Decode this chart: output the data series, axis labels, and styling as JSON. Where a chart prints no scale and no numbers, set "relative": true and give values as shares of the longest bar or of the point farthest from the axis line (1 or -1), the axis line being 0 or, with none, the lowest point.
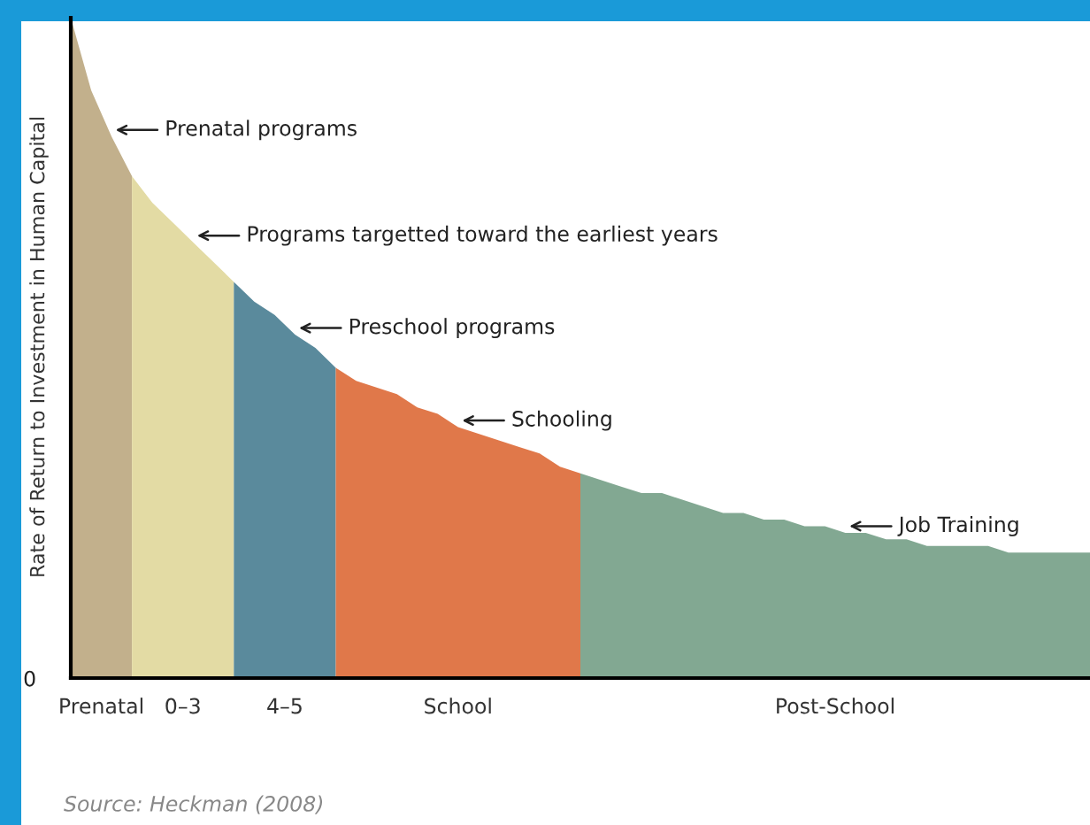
{
  "chart_data": {
    "type": "area",
    "relative": true,
    "ylabel": "Rate of Return to Investment in Human Capital",
    "legend": false,
    "categories": [
      null,
      null,
      null,
      null,
      null,
      null,
      null,
      null,
      null,
      null,
      null,
      null,
      null,
      null,
      null,
      null,
      null,
      null,
      null,
      null,
      null,
      null,
      null,
      null,
      null,
      null,
      null,
      null,
      null,
      null,
      null,
      null,
      null,
      null,
      null,
      null,
      null,
      null,
      null,
      null,
      null,
      null,
      null,
      null,
      null,
      null,
      null,
      null,
      null,
      null,
      null
    ],
    "series": [
      {
        "name": "Prenatal",
        "color": "#c2b08c",
        "values": [
          1.0,
          0.89,
          0.82,
          0.76,
          null,
          null,
          null,
          null,
          null,
          null,
          null,
          null,
          null,
          null,
          null,
          null,
          null,
          null,
          null,
          null,
          null,
          null,
          null,
          null,
          null,
          null,
          null,
          null,
          null,
          null,
          null,
          null,
          null,
          null,
          null,
          null,
          null,
          null,
          null,
          null,
          null,
          null,
          null,
          null,
          null,
          null,
          null,
          null,
          null,
          null,
          null
        ]
      },
      {
        "name": "0–3",
        "color": "#e3dba4",
        "values": [
          null,
          null,
          null,
          0.76,
          0.72,
          0.69,
          0.66,
          0.63,
          0.6,
          null,
          null,
          null,
          null,
          null,
          null,
          null,
          null,
          null,
          null,
          null,
          null,
          null,
          null,
          null,
          null,
          null,
          null,
          null,
          null,
          null,
          null,
          null,
          null,
          null,
          null,
          null,
          null,
          null,
          null,
          null,
          null,
          null,
          null,
          null,
          null,
          null,
          null,
          null,
          null,
          null,
          null
        ]
      },
      {
        "name": "4–5",
        "color": "#5a8a9c",
        "values": [
          null,
          null,
          null,
          null,
          null,
          null,
          null,
          null,
          0.6,
          0.57,
          0.55,
          0.52,
          0.5,
          0.47,
          null,
          null,
          null,
          null,
          null,
          null,
          null,
          null,
          null,
          null,
          null,
          null,
          null,
          null,
          null,
          null,
          null,
          null,
          null,
          null,
          null,
          null,
          null,
          null,
          null,
          null,
          null,
          null,
          null,
          null,
          null,
          null,
          null,
          null,
          null,
          null,
          null
        ]
      },
      {
        "name": "School",
        "color": "#e0784a",
        "values": [
          null,
          null,
          null,
          null,
          null,
          null,
          null,
          null,
          null,
          null,
          null,
          null,
          null,
          0.47,
          0.45,
          0.44,
          0.43,
          0.41,
          0.4,
          0.38,
          0.37,
          0.36,
          0.35,
          0.34,
          0.32,
          0.31,
          null,
          null,
          null,
          null,
          null,
          null,
          null,
          null,
          null,
          null,
          null,
          null,
          null,
          null,
          null,
          null,
          null,
          null,
          null,
          null,
          null,
          null,
          null,
          null,
          null
        ]
      },
      {
        "name": "Post-School",
        "color": "#82a892",
        "values": [
          null,
          null,
          null,
          null,
          null,
          null,
          null,
          null,
          null,
          null,
          null,
          null,
          null,
          null,
          null,
          null,
          null,
          null,
          null,
          null,
          null,
          null,
          null,
          null,
          null,
          0.31,
          0.3,
          0.29,
          0.28,
          0.28,
          0.27,
          0.26,
          0.25,
          0.25,
          0.24,
          0.24,
          0.23,
          0.23,
          0.22,
          0.22,
          0.21,
          0.21,
          0.2,
          0.2,
          0.2,
          0.2,
          0.19,
          0.19,
          0.19,
          0.19,
          0.19
        ]
      }
    ],
    "annotations": [
      "Prenatal programs",
      "Programs targetted toward the earliest years",
      "Preschool programs",
      "Schooling",
      "Job Training",
      "0",
      "Source: Heckman (2008)"
    ]
  }
}
